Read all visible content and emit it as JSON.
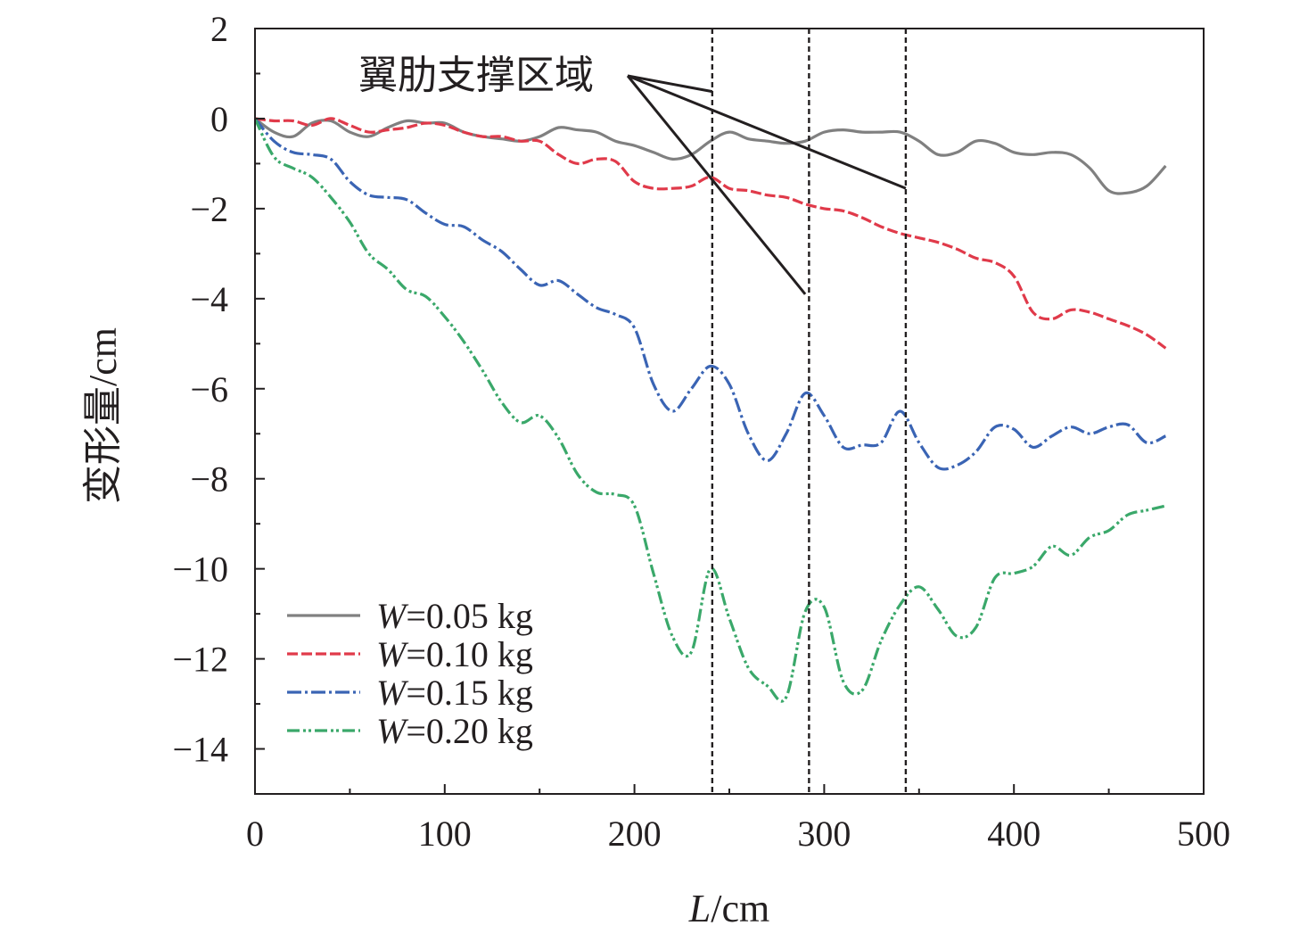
{
  "chart_data": {
    "type": "line",
    "title": "",
    "xlabel": {
      "italic": "L",
      "rest": "/cm"
    },
    "ylabel": "变形量/cm",
    "xlim": [
      0,
      500
    ],
    "ylim": [
      -15,
      2
    ],
    "xticks": [
      0,
      100,
      200,
      300,
      400,
      500
    ],
    "yticks": [
      2,
      0,
      -2,
      -4,
      -6,
      -8,
      -10,
      -12,
      -14
    ],
    "xtick_labels": [
      "0",
      "100",
      "200",
      "300",
      "400",
      "500"
    ],
    "ytick_labels": [
      "2",
      "0",
      "−2",
      "−4",
      "−6",
      "−8",
      "−10",
      "−12",
      "−14"
    ],
    "grid": false,
    "legend_position": "lower-left",
    "annotation": {
      "text": "翼肋支撑区域",
      "rib_positions": [
        241,
        292,
        343
      ],
      "pointer_targets": [
        [
          241,
          0.6
        ],
        [
          343,
          -1.55
        ],
        [
          290,
          -3.9
        ]
      ]
    },
    "series": [
      {
        "name": "W=0.05 kg",
        "label_italic": "W",
        "label_rest": "=0.05 kg",
        "color": "#808080",
        "style": "solid",
        "x": [
          0,
          10,
          20,
          30,
          40,
          50,
          60,
          70,
          80,
          90,
          100,
          110,
          120,
          130,
          140,
          150,
          160,
          170,
          180,
          190,
          200,
          210,
          220,
          230,
          240,
          250,
          260,
          270,
          280,
          290,
          300,
          310,
          320,
          330,
          340,
          350,
          360,
          370,
          380,
          390,
          400,
          410,
          420,
          430,
          440,
          450,
          460,
          470,
          480
        ],
        "y": [
          0,
          -0.3,
          -0.4,
          -0.1,
          -0.05,
          -0.3,
          -0.4,
          -0.2,
          -0.05,
          -0.1,
          -0.1,
          -0.3,
          -0.4,
          -0.45,
          -0.5,
          -0.4,
          -0.2,
          -0.25,
          -0.3,
          -0.5,
          -0.6,
          -0.75,
          -0.9,
          -0.8,
          -0.5,
          -0.3,
          -0.45,
          -0.5,
          -0.55,
          -0.5,
          -0.3,
          -0.25,
          -0.3,
          -0.3,
          -0.3,
          -0.5,
          -0.8,
          -0.75,
          -0.5,
          -0.55,
          -0.75,
          -0.8,
          -0.75,
          -0.8,
          -1.1,
          -1.6,
          -1.65,
          -1.5,
          -1.05
        ]
      },
      {
        "name": "W=0.10 kg",
        "label_italic": "W",
        "label_rest": "=0.10 kg",
        "color": "#e03a4a",
        "style": "dashed",
        "x": [
          0,
          10,
          20,
          30,
          40,
          50,
          60,
          70,
          80,
          90,
          100,
          110,
          120,
          130,
          140,
          150,
          160,
          170,
          180,
          190,
          200,
          210,
          220,
          230,
          240,
          250,
          260,
          270,
          280,
          290,
          300,
          310,
          320,
          330,
          340,
          350,
          360,
          370,
          380,
          390,
          400,
          410,
          420,
          430,
          440,
          450,
          460,
          470,
          480
        ],
        "y": [
          0,
          -0.05,
          -0.05,
          -0.15,
          0,
          -0.15,
          -0.3,
          -0.25,
          -0.2,
          -0.1,
          -0.15,
          -0.3,
          -0.4,
          -0.4,
          -0.5,
          -0.5,
          -0.8,
          -1.0,
          -0.9,
          -0.95,
          -1.4,
          -1.55,
          -1.55,
          -1.5,
          -1.3,
          -1.55,
          -1.6,
          -1.7,
          -1.75,
          -1.9,
          -2.0,
          -2.05,
          -2.2,
          -2.4,
          -2.55,
          -2.65,
          -2.75,
          -2.9,
          -3.1,
          -3.2,
          -3.5,
          -4.3,
          -4.45,
          -4.25,
          -4.3,
          -4.45,
          -4.6,
          -4.8,
          -5.1
        ]
      },
      {
        "name": "W=0.15 kg",
        "label_italic": "W",
        "label_rest": "=0.15 kg",
        "color": "#3a64b4",
        "style": "dashdot",
        "x": [
          0,
          10,
          20,
          30,
          40,
          50,
          60,
          70,
          80,
          90,
          100,
          110,
          120,
          130,
          140,
          150,
          160,
          170,
          180,
          190,
          200,
          210,
          220,
          230,
          240,
          250,
          260,
          270,
          280,
          290,
          300,
          310,
          320,
          330,
          340,
          350,
          360,
          370,
          380,
          390,
          400,
          410,
          420,
          430,
          440,
          450,
          460,
          470,
          480
        ],
        "y": [
          0,
          -0.5,
          -0.75,
          -0.8,
          -0.9,
          -1.4,
          -1.7,
          -1.75,
          -1.8,
          -2.1,
          -2.35,
          -2.4,
          -2.7,
          -2.95,
          -3.35,
          -3.7,
          -3.6,
          -3.9,
          -4.2,
          -4.35,
          -4.65,
          -5.9,
          -6.5,
          -6.0,
          -5.5,
          -5.9,
          -7.0,
          -7.6,
          -7.0,
          -6.1,
          -6.6,
          -7.3,
          -7.25,
          -7.2,
          -6.5,
          -7.2,
          -7.75,
          -7.7,
          -7.4,
          -6.85,
          -6.9,
          -7.3,
          -7.05,
          -6.85,
          -7.0,
          -6.85,
          -6.8,
          -7.2,
          -7.05
        ]
      },
      {
        "name": "W=0.20 kg",
        "label_italic": "W",
        "label_rest": "=0.20 kg",
        "color": "#3aa86a",
        "style": "dashdotdot",
        "x": [
          0,
          10,
          20,
          30,
          40,
          50,
          60,
          70,
          80,
          90,
          100,
          110,
          120,
          130,
          140,
          150,
          160,
          170,
          180,
          190,
          200,
          210,
          220,
          230,
          240,
          250,
          260,
          270,
          280,
          290,
          300,
          310,
          320,
          330,
          340,
          350,
          360,
          370,
          380,
          390,
          400,
          410,
          420,
          430,
          440,
          450,
          460,
          470,
          480
        ],
        "y": [
          0,
          -0.85,
          -1.1,
          -1.3,
          -1.75,
          -2.3,
          -3.0,
          -3.35,
          -3.8,
          -3.95,
          -4.4,
          -4.95,
          -5.6,
          -6.3,
          -6.75,
          -6.6,
          -7.1,
          -7.9,
          -8.3,
          -8.35,
          -8.6,
          -10.1,
          -11.5,
          -11.85,
          -10.0,
          -11.1,
          -12.2,
          -12.6,
          -12.85,
          -10.95,
          -10.85,
          -12.5,
          -12.7,
          -11.6,
          -10.8,
          -10.4,
          -10.9,
          -11.5,
          -11.3,
          -10.2,
          -10.1,
          -9.95,
          -9.5,
          -9.7,
          -9.3,
          -9.15,
          -8.8,
          -8.7,
          -8.6
        ]
      }
    ]
  }
}
